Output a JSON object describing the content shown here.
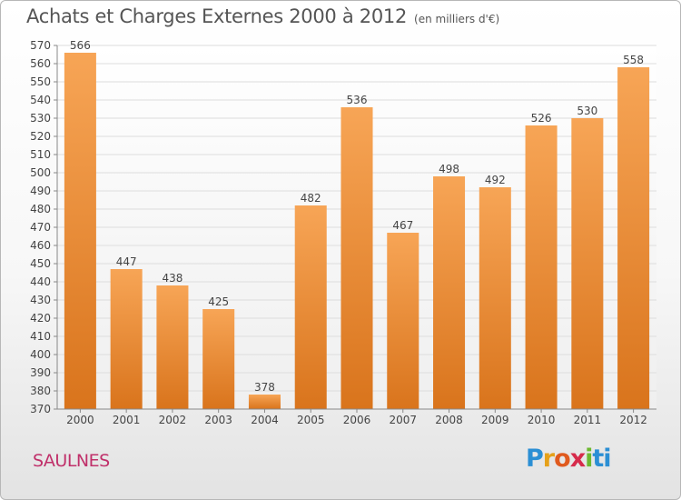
{
  "header": {
    "title": "Achats et Charges Externes 2000 à 2012",
    "subtitle": "(en milliers d'€)"
  },
  "location": "SAULNES",
  "logo": {
    "letters": [
      "P",
      "r",
      "o",
      "x",
      "i",
      "ti"
    ],
    "text": "Proxiti"
  },
  "colors": {
    "bar_top": "#f7a556",
    "bar_bottom": "#d9741c",
    "grid": "#dddddd",
    "axis": "#888888",
    "location": "#c0306a"
  },
  "chart_data": {
    "type": "bar",
    "categories": [
      "2000",
      "2001",
      "2002",
      "2003",
      "2004",
      "2005",
      "2006",
      "2007",
      "2008",
      "2009",
      "2010",
      "2011",
      "2012"
    ],
    "values": [
      566,
      447,
      438,
      425,
      378,
      482,
      536,
      467,
      498,
      492,
      526,
      530,
      558
    ],
    "title": "Achats et Charges Externes 2000 à 2012",
    "subtitle": "(en milliers d'€)",
    "xlabel": "",
    "ylabel": "",
    "ylim": [
      370,
      570
    ],
    "yticks": [
      370,
      380,
      390,
      400,
      410,
      420,
      430,
      440,
      450,
      460,
      470,
      480,
      490,
      500,
      510,
      520,
      530,
      540,
      550,
      560,
      570
    ],
    "grid": true,
    "legend": "none"
  }
}
